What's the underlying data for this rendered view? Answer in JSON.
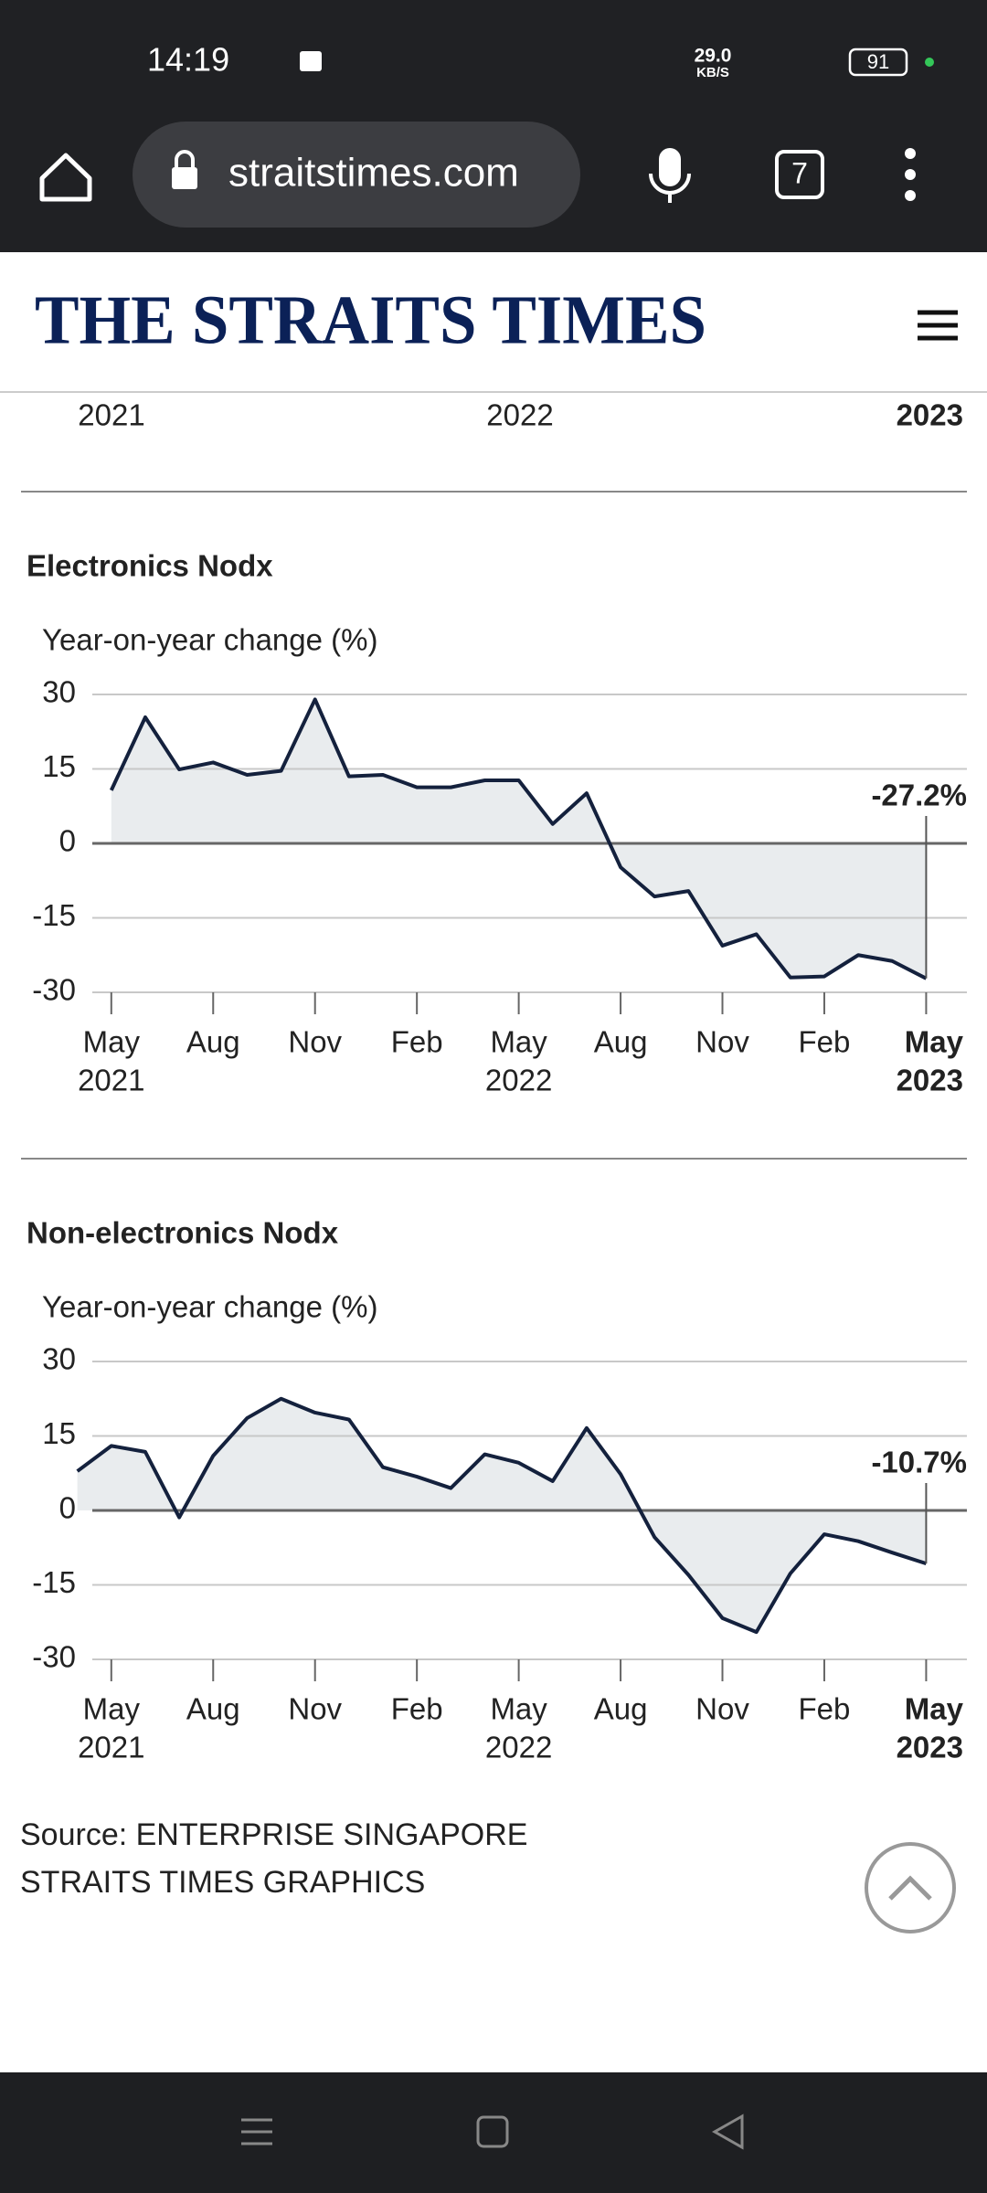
{
  "status_bar": {
    "time": "14:19",
    "network_speed": "29.0",
    "network_unit": "KB/S",
    "battery": "91"
  },
  "browser": {
    "url": "straitstimes.com",
    "tab_count": "7"
  },
  "header": {
    "logo": "THE STRAITS TIMES"
  },
  "previous_chart_axis": [
    "2021",
    "2022",
    "2023"
  ],
  "chart_data": [
    {
      "type": "line",
      "title": "Electronics Nodx",
      "y_label": "Year-on-year change (%)",
      "x": [
        0,
        1,
        2,
        3,
        4,
        5,
        6,
        7,
        8,
        9,
        10,
        11,
        12,
        13,
        14,
        15,
        16,
        17,
        18,
        19,
        20,
        21,
        22,
        23,
        24
      ],
      "values": [
        10.7,
        25.4,
        14.9,
        16.3,
        13.8,
        14.6,
        29.0,
        13.5,
        13.8,
        11.3,
        11.3,
        12.7,
        12.7,
        3.9,
        10.1,
        -4.8,
        -10.7,
        -9.6,
        -20.6,
        -18.3,
        -27.0,
        -26.8,
        -22.5,
        -23.7,
        -27.2
      ],
      "value_labels": [
        null,
        null,
        null,
        null,
        null,
        null,
        null,
        null,
        null,
        null,
        null,
        null,
        null,
        null,
        null,
        null,
        null,
        null,
        null,
        null,
        null,
        null,
        null,
        null,
        "-27.2%"
      ],
      "color": "#14213d",
      "fill_color": "#e9ecee",
      "xlim": [
        -0.56,
        25.2
      ],
      "xticks": [
        {
          "value": 0,
          "label": "May"
        },
        {
          "value": 3,
          "label": "Aug"
        },
        {
          "value": 6,
          "label": "Nov"
        },
        {
          "value": 9,
          "label": "Feb"
        },
        {
          "value": 12,
          "label": "May"
        },
        {
          "value": 15,
          "label": "Aug"
        },
        {
          "value": 18,
          "label": "Nov"
        },
        {
          "value": 21,
          "label": "Feb"
        },
        {
          "value": 24,
          "label": "May"
        }
      ],
      "x_year_labels": [
        {
          "value": 0,
          "label": "2021"
        },
        {
          "value": 12,
          "label": "2022"
        },
        {
          "value": 24,
          "label": "2023"
        }
      ],
      "ylim": [
        -30,
        30
      ],
      "yticks": [
        -30,
        -15,
        0,
        15,
        30
      ],
      "grid": true
    },
    {
      "type": "line",
      "title": "Non-electronics Nodx",
      "y_label": "Year-on-year change (%)",
      "x": [
        -1,
        0,
        1,
        2,
        3,
        4,
        5,
        6,
        7,
        8,
        9,
        10,
        11,
        12,
        13,
        14,
        15,
        16,
        17,
        18,
        19,
        20,
        21,
        22,
        23,
        24
      ],
      "values": [
        7.9,
        13.0,
        11.8,
        -1.4,
        11.0,
        18.6,
        22.5,
        19.7,
        18.3,
        8.7,
        6.8,
        4.5,
        11.3,
        9.6,
        5.9,
        16.6,
        7.3,
        -5.4,
        -13.0,
        -21.7,
        -24.5,
        -12.7,
        -4.8,
        -6.2,
        -8.5,
        -10.7
      ],
      "value_labels": [
        null,
        null,
        null,
        null,
        null,
        null,
        null,
        null,
        null,
        null,
        null,
        null,
        null,
        null,
        null,
        null,
        null,
        null,
        null,
        null,
        null,
        null,
        null,
        null,
        null,
        "-10.7%"
      ],
      "color": "#14213d",
      "fill_color": "#e9ecee",
      "xlim": [
        -0.56,
        25.2
      ],
      "xticks": [
        {
          "value": 0,
          "label": "May"
        },
        {
          "value": 3,
          "label": "Aug"
        },
        {
          "value": 6,
          "label": "Nov"
        },
        {
          "value": 9,
          "label": "Feb"
        },
        {
          "value": 12,
          "label": "May"
        },
        {
          "value": 15,
          "label": "Aug"
        },
        {
          "value": 18,
          "label": "Nov"
        },
        {
          "value": 21,
          "label": "Feb"
        },
        {
          "value": 24,
          "label": "May"
        }
      ],
      "x_year_labels": [
        {
          "value": 0,
          "label": "2021"
        },
        {
          "value": 12,
          "label": "2022"
        },
        {
          "value": 24,
          "label": "2023"
        }
      ],
      "ylim": [
        -30,
        30
      ],
      "yticks": [
        -30,
        -15,
        0,
        15,
        30
      ],
      "grid": true
    }
  ],
  "source": [
    "Source: ENTERPRISE SINGAPORE",
    "STRAITS TIMES GRAPHICS"
  ]
}
